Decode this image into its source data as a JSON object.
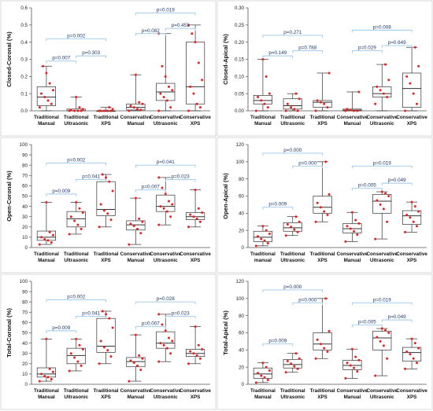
{
  "chart_data": [
    {
      "type": "box",
      "ylabel": "Closed-Coronal (%)",
      "ylim": [
        0,
        0.6
      ],
      "yticks": [
        0,
        0.1,
        0.2,
        0.3,
        0.4,
        0.5,
        0.6
      ],
      "yformat": 1,
      "categories": [
        [
          "Traditional",
          "Manual"
        ],
        [
          "Traditional",
          "Ultrasonic"
        ],
        [
          "Traditional",
          "XPS"
        ],
        [
          "Conservative",
          "Manual"
        ],
        [
          "Conservative",
          "Ultrasonic"
        ],
        [
          "Conservative",
          "XPS"
        ]
      ],
      "boxes": [
        {
          "min": 0,
          "q1": 0.03,
          "median": 0.08,
          "q3": 0.14,
          "max": 0.26
        },
        {
          "min": 0,
          "q1": 0,
          "median": 0,
          "q3": 0.01,
          "max": 0.08
        },
        {
          "min": 0,
          "q1": 0,
          "median": 0,
          "q3": 0,
          "max": 0.02
        },
        {
          "min": 0,
          "q1": 0.005,
          "median": 0.02,
          "q3": 0.04,
          "max": 0.21
        },
        {
          "min": 0,
          "q1": 0.06,
          "median": 0.11,
          "q3": 0.16,
          "max": 0.45
        },
        {
          "min": 0,
          "q1": 0.04,
          "median": 0.14,
          "q3": 0.4,
          "max": 0.5
        }
      ],
      "points": [
        [
          0.02,
          0.04,
          0.06,
          0.08,
          0.1,
          0.12,
          0.16,
          0.22,
          0.26
        ],
        [
          0,
          0,
          0,
          0,
          0.005,
          0.01,
          0.02,
          0.08
        ],
        [
          0,
          0,
          0,
          0,
          0,
          0.01,
          0.02
        ],
        [
          0,
          0.005,
          0.01,
          0.02,
          0.03,
          0.04,
          0.05,
          0.21
        ],
        [
          0,
          0.02,
          0.06,
          0.08,
          0.1,
          0.12,
          0.14,
          0.2,
          0.26,
          0.45
        ],
        [
          0,
          0.02,
          0.04,
          0.1,
          0.14,
          0.18,
          0.28,
          0.4,
          0.45,
          0.5
        ]
      ],
      "annotations": [
        {
          "text": "p=0.002",
          "from": 0,
          "to": 2,
          "y": 0.42
        },
        {
          "text": "p=0.007",
          "from": 0,
          "to": 1,
          "y": 0.29
        },
        {
          "text": "p=0.303",
          "from": 1,
          "to": 2,
          "y": 0.32
        },
        {
          "text": "p=0.019",
          "from": 3,
          "to": 5,
          "y": 0.57
        },
        {
          "text": "p=0.082",
          "from": 3,
          "to": 4,
          "y": 0.45
        },
        {
          "text": "p=0.451",
          "from": 4,
          "to": 5,
          "y": 0.48
        }
      ]
    },
    {
      "type": "box",
      "ylabel": "Closed-Apical (%)",
      "ylim": [
        0,
        0.3
      ],
      "yticks": [
        0,
        0.05,
        0.1,
        0.15,
        0.2,
        0.25,
        0.3
      ],
      "yformat": 2,
      "categories": [
        [
          "Traditional",
          "Manual"
        ],
        [
          "Traditional",
          "Ultrasonic"
        ],
        [
          "Traditional",
          "XPS"
        ],
        [
          "Conservative",
          "Manual"
        ],
        [
          "Conservative",
          "Ultrasonic"
        ],
        [
          "Conservative",
          "XPS"
        ]
      ],
      "boxes": [
        {
          "min": 0,
          "q1": 0.02,
          "median": 0.03,
          "q3": 0.045,
          "max": 0.15
        },
        {
          "min": 0,
          "q1": 0.005,
          "median": 0.015,
          "q3": 0.035,
          "max": 0.05
        },
        {
          "min": 0,
          "q1": 0.01,
          "median": 0.025,
          "q3": 0.03,
          "max": 0.11
        },
        {
          "min": 0,
          "q1": 0,
          "median": 0.002,
          "q3": 0.005,
          "max": 0.055
        },
        {
          "min": 0,
          "q1": 0.04,
          "median": 0.05,
          "q3": 0.07,
          "max": 0.135
        },
        {
          "min": 0,
          "q1": 0.01,
          "median": 0.065,
          "q3": 0.11,
          "max": 0.185
        }
      ],
      "points": [
        [
          0,
          0.01,
          0.02,
          0.03,
          0.04,
          0.05,
          0.1,
          0.15
        ],
        [
          0,
          0,
          0.005,
          0.01,
          0.02,
          0.035,
          0.05
        ],
        [
          0,
          0.01,
          0.02,
          0.025,
          0.03,
          0.11
        ],
        [
          0,
          0,
          0,
          0.002,
          0.005,
          0.055
        ],
        [
          0.02,
          0.04,
          0.05,
          0.06,
          0.07,
          0.09,
          0.135
        ],
        [
          0,
          0.02,
          0.05,
          0.08,
          0.1,
          0.13,
          0.185
        ]
      ],
      "annotations": [
        {
          "text": "p=0.271",
          "from": 0,
          "to": 2,
          "y": 0.22
        },
        {
          "text": "p=0.149",
          "from": 0,
          "to": 1,
          "y": 0.16
        },
        {
          "text": "p=0.788",
          "from": 1,
          "to": 2,
          "y": 0.175
        },
        {
          "text": "p=0.008",
          "from": 3,
          "to": 5,
          "y": 0.235
        },
        {
          "text": "p=0.029",
          "from": 3,
          "to": 4,
          "y": 0.175
        },
        {
          "text": "p=0.649",
          "from": 4,
          "to": 5,
          "y": 0.19
        }
      ]
    },
    {
      "type": "box",
      "ylabel": "Open-Coronal (%)",
      "ylim": [
        0,
        100
      ],
      "yticks": [
        0,
        10,
        20,
        30,
        40,
        50,
        60,
        70,
        80,
        90,
        100
      ],
      "yformat": 0,
      "categories": [
        [
          "Traditional",
          "Manual"
        ],
        [
          "Traditional",
          "Ultrasonic"
        ],
        [
          "Traditional",
          "XPS"
        ],
        [
          "Conservative",
          "Manual"
        ],
        [
          "Conservative",
          "Ultrasonic"
        ],
        [
          "Conservative",
          "XPS"
        ]
      ],
      "boxes": [
        {
          "min": 3,
          "q1": 7,
          "median": 10,
          "q3": 16,
          "max": 44
        },
        {
          "min": 13,
          "q1": 20,
          "median": 28,
          "q3": 35,
          "max": 44
        },
        {
          "min": 20,
          "q1": 31,
          "median": 37,
          "q3": 64,
          "max": 71
        },
        {
          "min": 3,
          "q1": 17,
          "median": 22,
          "q3": 26,
          "max": 48
        },
        {
          "min": 22,
          "q1": 35,
          "median": 40,
          "q3": 51,
          "max": 68
        },
        {
          "min": 20,
          "q1": 27,
          "median": 30,
          "q3": 34,
          "max": 56
        }
      ],
      "points": [
        [
          3,
          5,
          7,
          8,
          10,
          12,
          15,
          44
        ],
        [
          13,
          18,
          22,
          26,
          30,
          34,
          38,
          44
        ],
        [
          20,
          27,
          33,
          36,
          42,
          55,
          64,
          68,
          71
        ],
        [
          3,
          14,
          18,
          21,
          23,
          25,
          28,
          48
        ],
        [
          22,
          30,
          35,
          38,
          40,
          42,
          45,
          52,
          58,
          68
        ],
        [
          20,
          25,
          28,
          30,
          32,
          34,
          38,
          56
        ]
      ],
      "annotations": [
        {
          "text": "p=0.002",
          "from": 0,
          "to": 2,
          "y": 82
        },
        {
          "text": "p=0.009",
          "from": 0,
          "to": 1,
          "y": 52
        },
        {
          "text": "p=0.041",
          "from": 1,
          "to": 2,
          "y": 66
        },
        {
          "text": "p=0.041",
          "from": 3,
          "to": 5,
          "y": 80
        },
        {
          "text": "p=0.007",
          "from": 3,
          "to": 4,
          "y": 56
        },
        {
          "text": "p=0.023",
          "from": 4,
          "to": 5,
          "y": 66
        }
      ]
    },
    {
      "type": "box",
      "ylabel": "Open-Apical (%)",
      "ylim": [
        0,
        120
      ],
      "yticks": [
        0,
        20,
        40,
        60,
        80,
        100,
        120
      ],
      "yformat": 0,
      "categories": [
        [
          "Traditional",
          "manual"
        ],
        [
          "Traditional",
          "Ultrasonic"
        ],
        [
          "Traditional",
          "XPS"
        ],
        [
          "Conservative",
          "Manual"
        ],
        [
          "Conservative",
          "Ultrasonic"
        ],
        [
          "Conservative",
          "XPS"
        ]
      ],
      "boxes": [
        {
          "min": 2,
          "q1": 7,
          "median": 12,
          "q3": 19,
          "max": 25
        },
        {
          "min": 14,
          "q1": 19,
          "median": 23,
          "q3": 29,
          "max": 36
        },
        {
          "min": 30,
          "q1": 40,
          "median": 47,
          "q3": 60,
          "max": 100
        },
        {
          "min": 7,
          "q1": 17,
          "median": 22,
          "q3": 28,
          "max": 41
        },
        {
          "min": 10,
          "q1": 40,
          "median": 54,
          "q3": 62,
          "max": 65
        },
        {
          "min": 18,
          "q1": 27,
          "median": 37,
          "q3": 43,
          "max": 53
        }
      ],
      "points": [
        [
          2,
          5,
          8,
          10,
          13,
          16,
          20,
          25
        ],
        [
          14,
          18,
          21,
          24,
          27,
          30,
          36
        ],
        [
          30,
          38,
          42,
          47,
          52,
          62,
          100
        ],
        [
          7,
          15,
          19,
          22,
          25,
          28,
          32,
          41
        ],
        [
          10,
          30,
          45,
          50,
          55,
          60,
          63,
          65
        ],
        [
          18,
          25,
          30,
          35,
          38,
          42,
          48,
          53
        ]
      ],
      "annotations": [
        {
          "text": "p=0.000",
          "from": 0,
          "to": 2,
          "y": 110
        },
        {
          "text": "p=0.009",
          "from": 0,
          "to": 1,
          "y": 47
        },
        {
          "text": "p=0.000",
          "from": 1,
          "to": 2,
          "y": 95
        },
        {
          "text": "p=0.019",
          "from": 3,
          "to": 5,
          "y": 95
        },
        {
          "text": "p=0.005",
          "from": 3,
          "to": 4,
          "y": 69
        },
        {
          "text": "p=0.049",
          "from": 4,
          "to": 5,
          "y": 75
        }
      ]
    },
    {
      "type": "box",
      "ylabel": "Total-Coronal (%)",
      "ylim": [
        0,
        100
      ],
      "yticks": [
        0,
        10,
        20,
        30,
        40,
        50,
        60,
        70,
        80,
        90,
        100
      ],
      "yformat": 0,
      "categories": [
        [
          "Traditional",
          "Manual"
        ],
        [
          "Traditional",
          "Ultrasonic"
        ],
        [
          "Traditional",
          "XPS"
        ],
        [
          "Conservative",
          "Manual"
        ],
        [
          "Conservative",
          "Ultrasonic"
        ],
        [
          "Conservative",
          "XPS"
        ]
      ],
      "boxes": [
        {
          "min": 3,
          "q1": 7,
          "median": 10,
          "q3": 16,
          "max": 44
        },
        {
          "min": 13,
          "q1": 20,
          "median": 28,
          "q3": 35,
          "max": 44
        },
        {
          "min": 20,
          "q1": 31,
          "median": 37,
          "q3": 64,
          "max": 71
        },
        {
          "min": 3,
          "q1": 17,
          "median": 22,
          "q3": 26,
          "max": 48
        },
        {
          "min": 22,
          "q1": 35,
          "median": 40,
          "q3": 51,
          "max": 68
        },
        {
          "min": 20,
          "q1": 27,
          "median": 30,
          "q3": 34,
          "max": 56
        }
      ],
      "points": [
        [
          3,
          5,
          7,
          8,
          10,
          12,
          15,
          44
        ],
        [
          13,
          18,
          22,
          26,
          30,
          34,
          38,
          44
        ],
        [
          20,
          27,
          33,
          36,
          42,
          55,
          64,
          68,
          71
        ],
        [
          3,
          14,
          18,
          21,
          23,
          25,
          28,
          48
        ],
        [
          22,
          30,
          35,
          38,
          40,
          42,
          45,
          52,
          58,
          68
        ],
        [
          20,
          25,
          28,
          30,
          32,
          34,
          38,
          56
        ]
      ],
      "annotations": [
        {
          "text": "p=0.002",
          "from": 0,
          "to": 2,
          "y": 82
        },
        {
          "text": "p=0.009",
          "from": 0,
          "to": 1,
          "y": 52
        },
        {
          "text": "p=0.041",
          "from": 1,
          "to": 2,
          "y": 66
        },
        {
          "text": "p=0.028",
          "from": 3,
          "to": 5,
          "y": 80
        },
        {
          "text": "p=0.007",
          "from": 3,
          "to": 4,
          "y": 56
        },
        {
          "text": "p=0.023",
          "from": 4,
          "to": 5,
          "y": 66
        }
      ]
    },
    {
      "type": "box",
      "ylabel": "Total-Apical (%)",
      "ylim": [
        0,
        120
      ],
      "yticks": [
        0,
        20,
        40,
        60,
        80,
        100,
        120
      ],
      "yformat": 0,
      "categories": [
        [
          "Traditional",
          "Manual"
        ],
        [
          "Traditional",
          "Ultrasonic"
        ],
        [
          "Traditional",
          "XPS"
        ],
        [
          "Conservative",
          "Manual"
        ],
        [
          "Conservative",
          "Ultrasonic"
        ],
        [
          "Conservative",
          "XPS"
        ]
      ],
      "boxes": [
        {
          "min": 2,
          "q1": 7,
          "median": 12,
          "q3": 19,
          "max": 25
        },
        {
          "min": 14,
          "q1": 19,
          "median": 23,
          "q3": 29,
          "max": 36
        },
        {
          "min": 30,
          "q1": 40,
          "median": 47,
          "q3": 60,
          "max": 100
        },
        {
          "min": 7,
          "q1": 17,
          "median": 22,
          "q3": 28,
          "max": 41
        },
        {
          "min": 10,
          "q1": 40,
          "median": 54,
          "q3": 62,
          "max": 65
        },
        {
          "min": 18,
          "q1": 27,
          "median": 37,
          "q3": 43,
          "max": 53
        }
      ],
      "points": [
        [
          2,
          5,
          8,
          10,
          13,
          16,
          20,
          25
        ],
        [
          14,
          18,
          21,
          24,
          27,
          30,
          36
        ],
        [
          30,
          38,
          42,
          47,
          52,
          62,
          100
        ],
        [
          7,
          15,
          19,
          22,
          25,
          28,
          32,
          41
        ],
        [
          10,
          30,
          45,
          50,
          55,
          60,
          63,
          65
        ],
        [
          18,
          25,
          30,
          35,
          38,
          42,
          48,
          53
        ]
      ],
      "annotations": [
        {
          "text": "p=0.000",
          "from": 0,
          "to": 2,
          "y": 110
        },
        {
          "text": "p=0.009",
          "from": 0,
          "to": 1,
          "y": 47
        },
        {
          "text": "p=0.000",
          "from": 1,
          "to": 2,
          "y": 95
        },
        {
          "text": "p=0.019",
          "from": 3,
          "to": 5,
          "y": 95
        },
        {
          "text": "p=0.005",
          "from": 3,
          "to": 4,
          "y": 69
        },
        {
          "text": "p=0.049",
          "from": 4,
          "to": 5,
          "y": 75
        }
      ]
    }
  ],
  "colors": {
    "point": "#e02424",
    "box": "#333333",
    "bracket": "#9bc8e8",
    "pvalue_text": "#1f3a6e",
    "frame": "#d9d9d9"
  }
}
